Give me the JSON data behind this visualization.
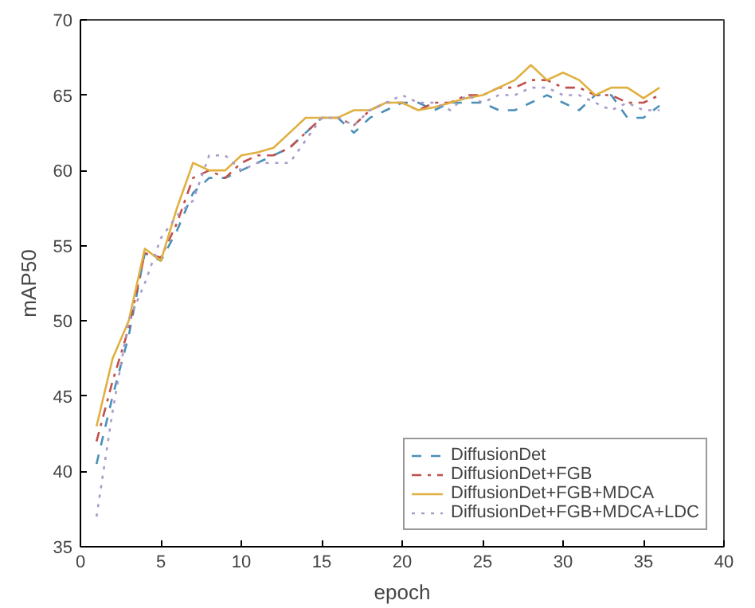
{
  "chart_data": {
    "type": "line",
    "xlabel": "epoch",
    "ylabel": "mAP50",
    "x": [
      1,
      2,
      3,
      4,
      5,
      6,
      7,
      8,
      9,
      10,
      11,
      12,
      13,
      14,
      15,
      16,
      17,
      18,
      19,
      20,
      21,
      22,
      23,
      24,
      25,
      26,
      27,
      28,
      29,
      30,
      31,
      32,
      33,
      34,
      35,
      36
    ],
    "series": [
      {
        "name": "DiffusionDet",
        "color": "#4a8fb8",
        "line_style": "dashed",
        "values": [
          40.5,
          45,
          49,
          54.5,
          54,
          56,
          58.5,
          59.5,
          59.5,
          60,
          60.5,
          61,
          61.5,
          62.5,
          63.5,
          63.5,
          62.5,
          63.5,
          64,
          64.5,
          64.5,
          64,
          64.5,
          64.5,
          64.5,
          64,
          64,
          64.5,
          65,
          64.5,
          64,
          65,
          65,
          63.5,
          63.5,
          64.3
        ]
      },
      {
        "name": "DiffusionDet+FGB",
        "color": "#c0504d",
        "line_style": "dashdot",
        "values": [
          42,
          46,
          49.5,
          54.5,
          54.2,
          56.5,
          59.5,
          60,
          59.5,
          60.5,
          61,
          61,
          61.5,
          62.5,
          63.5,
          63.5,
          63,
          64,
          64.5,
          64.5,
          64,
          64.5,
          64.5,
          65,
          65,
          65.5,
          65.5,
          66,
          66,
          65.5,
          65.5,
          65,
          65,
          64.5,
          64.5,
          65
        ]
      },
      {
        "name": "DiffusionDet+FGB+MDCA",
        "color": "#e0b040",
        "line_style": "solid",
        "values": [
          43,
          47.5,
          50,
          54.8,
          54,
          57.5,
          60.5,
          60,
          60,
          61,
          61.2,
          61.5,
          62.5,
          63.5,
          63.5,
          63.5,
          64,
          64,
          64.5,
          64.5,
          64,
          64.2,
          64.5,
          64.8,
          65,
          65.5,
          66,
          67,
          66,
          66.5,
          66,
          65,
          65.5,
          65.5,
          64.8,
          65.5
        ]
      },
      {
        "name": "DiffusionDet+FGB+MDCA+LDC",
        "color": "#a89cc8",
        "line_style": "dotted",
        "values": [
          37,
          44,
          50,
          52.5,
          55.5,
          57,
          58,
          61,
          61,
          60,
          60.5,
          60.5,
          60.5,
          62,
          63.5,
          63.5,
          63,
          64,
          64.5,
          65,
          64.5,
          64.5,
          64,
          65,
          64.5,
          65,
          65,
          65.5,
          65.5,
          65,
          65,
          64.5,
          64,
          64.5,
          64,
          64
        ]
      }
    ],
    "xlim": [
      0,
      40
    ],
    "xticks": [
      0,
      5,
      10,
      15,
      20,
      25,
      30,
      35,
      40
    ],
    "ylim": [
      35,
      70
    ],
    "yticks": [
      35,
      40,
      45,
      50,
      55,
      60,
      65,
      70
    ],
    "legend": "bottom right",
    "grid": false
  }
}
